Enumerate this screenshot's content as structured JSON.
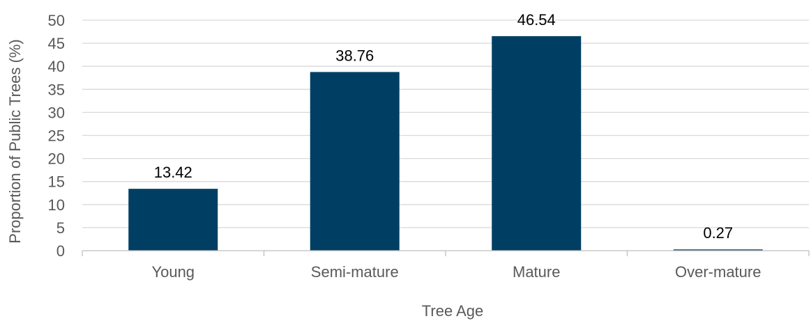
{
  "chart_data": {
    "type": "bar",
    "title": "",
    "xlabel": "Tree Age",
    "ylabel": "Proportion of Public Trees (%)",
    "categories": [
      "Young",
      "Semi-mature",
      "Mature",
      "Over-mature"
    ],
    "values": [
      13.42,
      38.76,
      46.54,
      0.27
    ],
    "data_labels": [
      "13.42",
      "38.76",
      "46.54",
      "0.27"
    ],
    "ylim": [
      0,
      50
    ],
    "yticks": [
      0,
      5,
      10,
      15,
      20,
      25,
      30,
      35,
      40,
      45,
      50
    ],
    "grid": true,
    "legend": "none",
    "colors": {
      "bar": "#003f63",
      "grid": "#d9d9d9",
      "axis": "#bfbfbf",
      "text": "#595959"
    }
  }
}
